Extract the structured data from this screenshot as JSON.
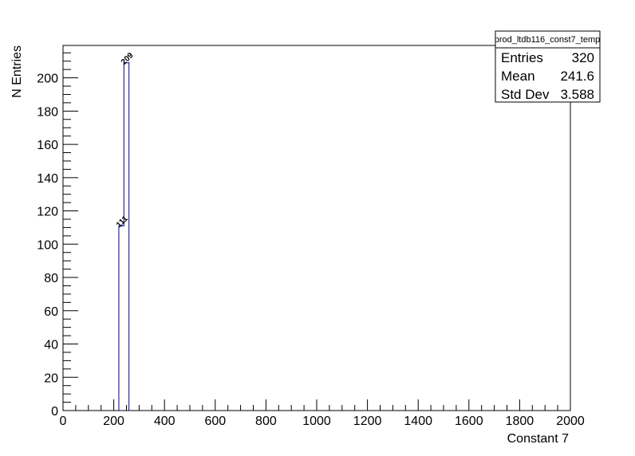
{
  "chart_data": {
    "type": "bar",
    "histogram": true,
    "title": "",
    "xlabel": "Constant 7",
    "ylabel": "N Entries",
    "xlim": [
      0,
      2000
    ],
    "ylim": [
      0,
      219.45
    ],
    "xticks": [
      "0",
      "200",
      "400",
      "600",
      "800",
      "1000",
      "1200",
      "1400",
      "1600",
      "1800",
      "2000"
    ],
    "yticks": [
      "0",
      "20",
      "40",
      "60",
      "80",
      "100",
      "120",
      "140",
      "160",
      "180",
      "200"
    ],
    "bins": [
      {
        "low": 220,
        "high": 240,
        "value": 111,
        "label": "111"
      },
      {
        "low": 240,
        "high": 260,
        "value": 209,
        "label": "209"
      }
    ],
    "line_color": "#000099",
    "grid": false
  },
  "stats_box": {
    "name": "prod_ltdb116_const7_temp",
    "rows": [
      {
        "label": "Entries",
        "value": "320"
      },
      {
        "label": "Mean",
        "value": "241.6"
      },
      {
        "label": "Std Dev",
        "value": "3.588"
      }
    ]
  }
}
